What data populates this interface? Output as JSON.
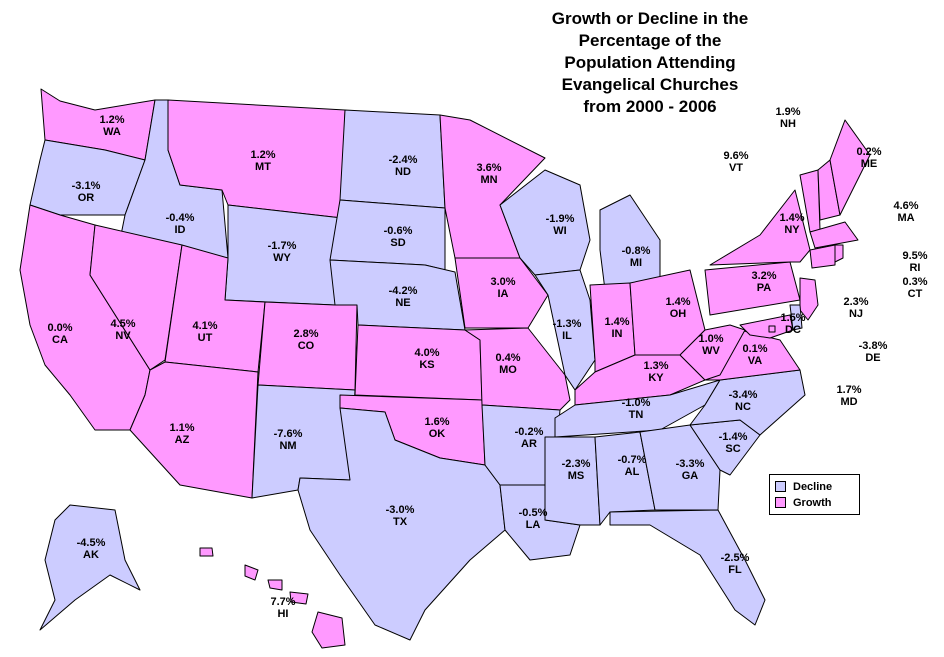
{
  "title": [
    "Growth or Decline in the",
    "Percentage of the",
    "Population Attending",
    "Evangelical Churches",
    "from 2000 - 2006"
  ],
  "colors": {
    "decline": "#CCCCFF",
    "growth": "#FF99FF",
    "border": "#000000"
  },
  "legend": [
    {
      "key": "decline",
      "label": "Decline"
    },
    {
      "key": "growth",
      "label": "Growth"
    }
  ],
  "states": {
    "WA": {
      "value": "1.2%",
      "status": "growth"
    },
    "OR": {
      "value": "-3.1%",
      "status": "decline"
    },
    "CA": {
      "value": "0.0%",
      "status": "growth"
    },
    "ID": {
      "value": "-0.4%",
      "status": "decline"
    },
    "NV": {
      "value": "4.5%",
      "status": "growth"
    },
    "MT": {
      "value": "1.2%",
      "status": "growth"
    },
    "WY": {
      "value": "-1.7%",
      "status": "decline"
    },
    "UT": {
      "value": "4.1%",
      "status": "growth"
    },
    "AZ": {
      "value": "1.1%",
      "status": "growth"
    },
    "CO": {
      "value": "2.8%",
      "status": "growth"
    },
    "NM": {
      "value": "-7.6%",
      "status": "decline"
    },
    "ND": {
      "value": "-2.4%",
      "status": "decline"
    },
    "SD": {
      "value": "-0.6%",
      "status": "decline"
    },
    "NE": {
      "value": "-4.2%",
      "status": "decline"
    },
    "KS": {
      "value": "4.0%",
      "status": "growth"
    },
    "OK": {
      "value": "1.6%",
      "status": "growth"
    },
    "TX": {
      "value": "-3.0%",
      "status": "decline"
    },
    "MN": {
      "value": "3.6%",
      "status": "growth"
    },
    "IA": {
      "value": "3.0%",
      "status": "growth"
    },
    "MO": {
      "value": "0.4%",
      "status": "growth"
    },
    "AR": {
      "value": "-0.2%",
      "status": "decline"
    },
    "LA": {
      "value": "-0.5%",
      "status": "decline"
    },
    "WI": {
      "value": "-1.9%",
      "status": "decline"
    },
    "IL": {
      "value": "-1.3%",
      "status": "decline"
    },
    "MI": {
      "value": "-0.8%",
      "status": "decline"
    },
    "IN": {
      "value": "1.4%",
      "status": "growth"
    },
    "OH": {
      "value": "1.4%",
      "status": "growth"
    },
    "KY": {
      "value": "1.3%",
      "status": "growth"
    },
    "TN": {
      "value": "-1.0%",
      "status": "decline"
    },
    "MS": {
      "value": "-2.3%",
      "status": "decline"
    },
    "AL": {
      "value": "-0.7%",
      "status": "decline"
    },
    "GA": {
      "value": "-3.3%",
      "status": "decline"
    },
    "FL": {
      "value": "-2.5%",
      "status": "decline"
    },
    "SC": {
      "value": "-1.4%",
      "status": "decline"
    },
    "NC": {
      "value": "-3.4%",
      "status": "decline"
    },
    "VA": {
      "value": "0.1%",
      "status": "growth"
    },
    "WV": {
      "value": "1.0%",
      "status": "growth"
    },
    "PA": {
      "value": "3.2%",
      "status": "growth"
    },
    "NY": {
      "value": "1.4%",
      "status": "growth"
    },
    "VT": {
      "value": "9.6%",
      "status": "growth"
    },
    "NH": {
      "value": "1.9%",
      "status": "growth"
    },
    "ME": {
      "value": "0.2%",
      "status": "growth"
    },
    "MA": {
      "value": "4.6%",
      "status": "growth"
    },
    "RI": {
      "value": "9.5%",
      "status": "growth"
    },
    "CT": {
      "value": "0.3%",
      "status": "growth"
    },
    "NJ": {
      "value": "2.3%",
      "status": "growth"
    },
    "DE": {
      "value": "-3.8%",
      "status": "decline"
    },
    "MD": {
      "value": "1.7%",
      "status": "growth"
    },
    "DC": {
      "value": "1.5%",
      "status": "growth"
    },
    "AK": {
      "value": "-4.5%",
      "status": "decline"
    },
    "HI": {
      "value": "7.7%",
      "status": "growth"
    }
  }
}
